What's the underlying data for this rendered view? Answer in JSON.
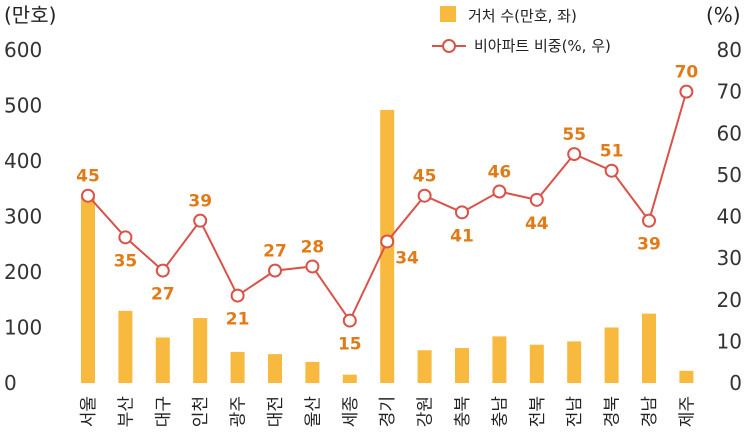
{
  "chart_data": {
    "type": "bar+line",
    "left_axis_unit": "(만호)",
    "right_axis_unit": "(%)",
    "ylim_left": [
      0,
      600
    ],
    "yticks_left": [
      "600",
      "500",
      "400",
      "300",
      "200",
      "100",
      "0"
    ],
    "ylim_right": [
      0,
      80
    ],
    "yticks_right": [
      "80",
      "70",
      "60",
      "50",
      "40",
      "30",
      "20",
      "10",
      "0"
    ],
    "grid": false,
    "legend_position": "top-center",
    "categories": [
      "서울",
      "부산",
      "대구",
      "인천",
      "광주",
      "대전",
      "울산",
      "세종",
      "경기",
      "강원",
      "충북",
      "충남",
      "전북",
      "전남",
      "경북",
      "경남",
      "제주"
    ],
    "series": [
      {
        "name": "거처 수(만호, 좌)",
        "type": "bar",
        "axis": "left",
        "color": "#F7B93E",
        "values": [
          335,
          130,
          82,
          117,
          56,
          52,
          38,
          15,
          492,
          59,
          63,
          84,
          69,
          75,
          100,
          125,
          22
        ]
      },
      {
        "name": "비아파트 비중(%, 우)",
        "type": "line",
        "axis": "right",
        "color": "#D9534A",
        "label_color": "#E07B17",
        "values": [
          45,
          35,
          27,
          39,
          21,
          27,
          28,
          15,
          34,
          45,
          41,
          46,
          44,
          55,
          51,
          39,
          70
        ],
        "labels": [
          "45",
          "35",
          "27",
          "39",
          "21",
          "27",
          "28",
          "15",
          "34",
          "45",
          "41",
          "46",
          "44",
          "55",
          "51",
          "39",
          "70"
        ]
      }
    ]
  }
}
